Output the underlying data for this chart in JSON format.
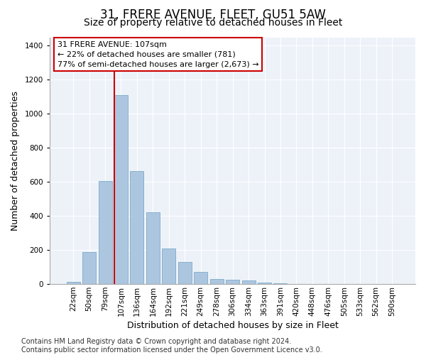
{
  "title": "31, FRERE AVENUE, FLEET, GU51 5AW",
  "subtitle": "Size of property relative to detached houses in Fleet",
  "xlabel": "Distribution of detached houses by size in Fleet",
  "ylabel": "Number of detached properties",
  "categories": [
    "22sqm",
    "50sqm",
    "79sqm",
    "107sqm",
    "136sqm",
    "164sqm",
    "192sqm",
    "221sqm",
    "249sqm",
    "278sqm",
    "306sqm",
    "334sqm",
    "363sqm",
    "391sqm",
    "420sqm",
    "448sqm",
    "476sqm",
    "505sqm",
    "533sqm",
    "562sqm",
    "590sqm"
  ],
  "values": [
    15,
    190,
    605,
    1110,
    665,
    420,
    210,
    130,
    70,
    30,
    25,
    20,
    10,
    5,
    2,
    1,
    1,
    0,
    0,
    0,
    0
  ],
  "bar_color": "#adc6e0",
  "bar_edge_color": "#7aaac8",
  "red_line_index": 3,
  "ylim": [
    0,
    1450
  ],
  "yticks": [
    0,
    200,
    400,
    600,
    800,
    1000,
    1200,
    1400
  ],
  "annotation_line1": "31 FRERE AVENUE: 107sqm",
  "annotation_line2": "← 22% of detached houses are smaller (781)",
  "annotation_line3": "77% of semi-detached houses are larger (2,673) →",
  "annotation_box_color": "#ffffff",
  "annotation_box_edge": "#cc0000",
  "footer_line1": "Contains HM Land Registry data © Crown copyright and database right 2024.",
  "footer_line2": "Contains public sector information licensed under the Open Government Licence v3.0.",
  "bg_color": "#edf2f9",
  "grid_color": "#ffffff",
  "title_fontsize": 12,
  "subtitle_fontsize": 10,
  "axis_label_fontsize": 9,
  "tick_fontsize": 7.5,
  "annotation_fontsize": 8,
  "footer_fontsize": 7
}
